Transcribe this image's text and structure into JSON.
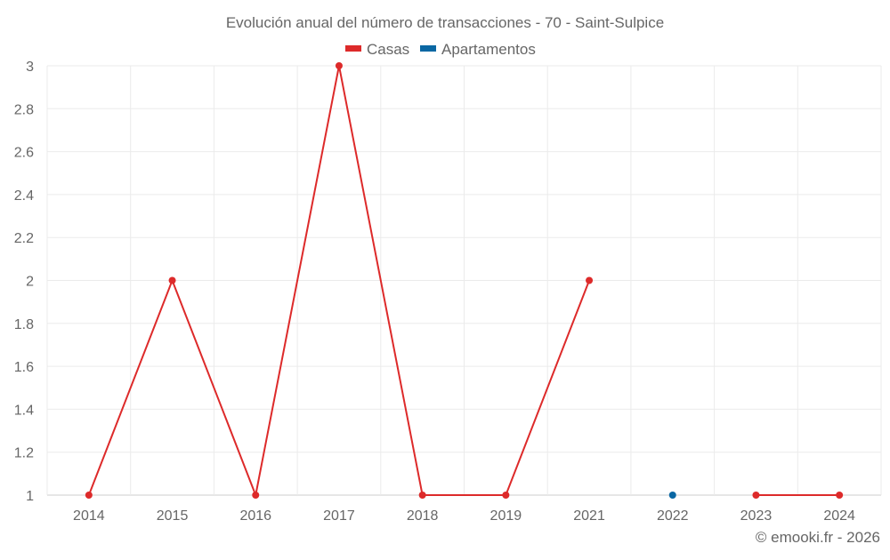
{
  "chart_data": {
    "type": "line",
    "title": "Evolución anual del número de transacciones - 70 - Saint-Sulpice",
    "categories": [
      "2014",
      "2015",
      "2016",
      "2017",
      "2018",
      "2019",
      "2021",
      "2022",
      "2023",
      "2024"
    ],
    "series": [
      {
        "name": "Casas",
        "color": "#dd2a2a",
        "values": [
          1,
          2,
          1,
          3,
          1,
          1,
          2,
          null,
          1,
          1
        ]
      },
      {
        "name": "Apartamentos",
        "color": "#0a67a3",
        "values": [
          null,
          null,
          null,
          null,
          null,
          null,
          null,
          1,
          null,
          null
        ]
      }
    ],
    "y_ticks": [
      "1",
      "1.2",
      "1.4",
      "1.6",
      "1.8",
      "2",
      "2.2",
      "2.4",
      "2.6",
      "2.8",
      "3"
    ],
    "ylim": [
      1,
      3
    ],
    "grid": true,
    "legend_position": "top-center",
    "xlabel": "",
    "ylabel": ""
  },
  "footer": {
    "credit": "© emooki.fr - 2026"
  }
}
